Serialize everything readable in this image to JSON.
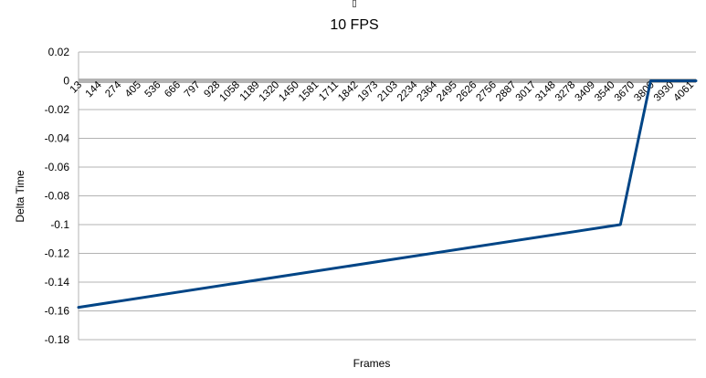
{
  "chart_data": {
    "type": "line",
    "title": "10 FPS",
    "title_mark": "▯",
    "xlabel": "Frames",
    "ylabel": "Delta Time",
    "ylim": [
      -0.18,
      0.02
    ],
    "yticks": [
      0.02,
      0,
      -0.02,
      -0.04,
      -0.06,
      -0.08,
      -0.1,
      -0.12,
      -0.14,
      -0.16,
      -0.18
    ],
    "ytick_labels": [
      "0.02",
      "0",
      "-0.02",
      "-0.04",
      "-0.06",
      "-0.08",
      "-0.1",
      "-0.12",
      "-0.14",
      "-0.16",
      "-0.18"
    ],
    "xlim": [
      13,
      4100
    ],
    "x_tick_labels": [
      "13",
      "144",
      "274",
      "405",
      "536",
      "666",
      "797",
      "928",
      "1058",
      "1189",
      "1320",
      "1450",
      "1581",
      "1711",
      "1842",
      "1973",
      "2103",
      "2234",
      "2364",
      "2495",
      "2626",
      "2756",
      "2887",
      "3017",
      "3148",
      "3278",
      "3409",
      "3540",
      "3670",
      "3800",
      "3930",
      "4061"
    ],
    "grid": true,
    "legend": "none",
    "series": [
      {
        "color": "#004586",
        "x": [
          13,
          3600,
          3800,
          4100
        ],
        "y": [
          -0.1575,
          -0.1,
          0,
          0
        ]
      }
    ]
  }
}
